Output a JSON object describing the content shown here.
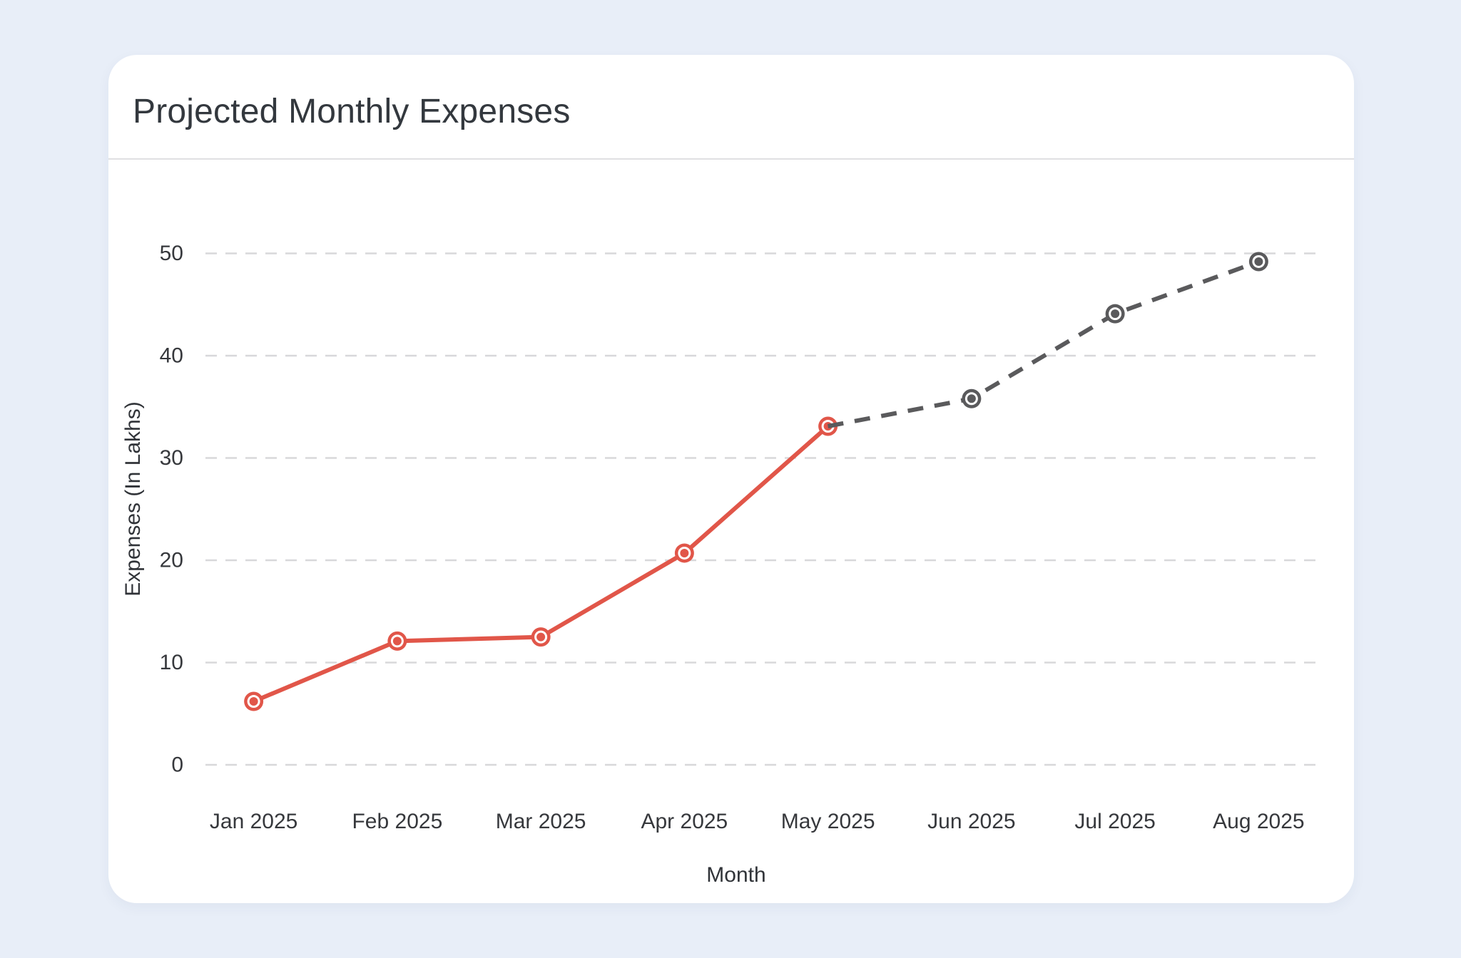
{
  "card": {
    "title": "Projected Monthly Expenses"
  },
  "colors": {
    "page_background": "#E8EEF8",
    "card_background": "#FFFFFF",
    "actual_line": "#E15649",
    "projected_line": "#5A5A5C",
    "gridline": "#D8D8DA",
    "tick_text": "#36383C",
    "divider": "#E0E0E2"
  },
  "chart_data": {
    "type": "line",
    "title": "Projected Monthly Expenses",
    "xlabel": "Month",
    "ylabel": "Expenses (In Lakhs)",
    "categories": [
      "Jan 2025",
      "Feb 2025",
      "Mar 2025",
      "Apr 2025",
      "May 2025",
      "Jun 2025",
      "Jul 2025",
      "Aug 2025"
    ],
    "y_ticks": [
      0,
      10,
      20,
      30,
      40,
      50
    ],
    "ylim": [
      0,
      50
    ],
    "grid": "horizontal-dashed",
    "legend_position": "none",
    "series": [
      {
        "name": "actual",
        "line_style": "solid",
        "color": "#E15649",
        "start_index": 0,
        "x": [
          "Jan 2025",
          "Feb 2025",
          "Mar 2025",
          "Apr 2025",
          "May 2025"
        ],
        "values": [
          6.2,
          12.1,
          12.5,
          20.7,
          33.1
        ]
      },
      {
        "name": "projected",
        "line_style": "dashed",
        "color": "#5A5A5C",
        "start_index": 4,
        "x": [
          "May 2025",
          "Jun 2025",
          "Jul 2025",
          "Aug 2025"
        ],
        "values": [
          33.1,
          35.8,
          44.1,
          49.2
        ]
      }
    ]
  }
}
